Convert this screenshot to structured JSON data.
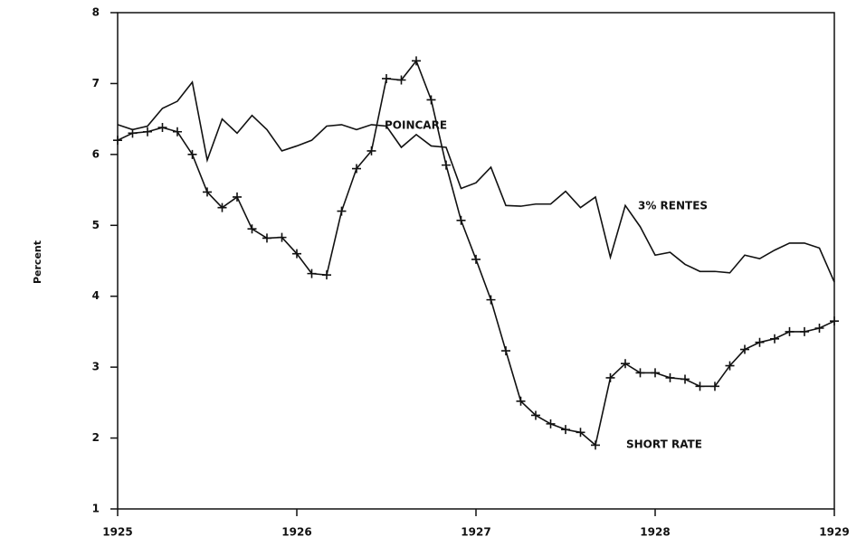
{
  "chart_data": {
    "type": "line",
    "y_label": "Percent",
    "annotations": [
      "POINCARE",
      "3% RENTES",
      "SHORT RATE"
    ],
    "x": [
      1925,
      1925.0833,
      1925.1667,
      1925.25,
      1925.3333,
      1925.4167,
      1925.5,
      1925.5833,
      1925.6667,
      1925.75,
      1925.8333,
      1925.9167,
      1926,
      1926.0833,
      1926.1667,
      1926.25,
      1926.3333,
      1926.4167,
      1926.5,
      1926.5833,
      1926.6667,
      1926.75,
      1926.8333,
      1926.9167,
      1927,
      1927.0833,
      1927.1667,
      1927.25,
      1927.3333,
      1927.4167,
      1927.5,
      1927.5833,
      1927.6667,
      1927.75,
      1927.8333,
      1927.9167,
      1928,
      1928.0833,
      1928.1667,
      1928.25,
      1928.3333,
      1928.4167,
      1928.5,
      1928.5833,
      1928.6667,
      1928.75,
      1928.8333,
      1928.9167,
      1929
    ],
    "series": [
      {
        "name": "3% RENTES",
        "color": "#111111",
        "marker": null,
        "values": [
          6.42,
          6.35,
          6.4,
          6.65,
          6.75,
          7.02,
          5.92,
          6.5,
          6.3,
          6.55,
          6.35,
          6.05,
          6.12,
          6.2,
          6.4,
          6.42,
          6.35,
          6.42,
          6.4,
          6.1,
          6.28,
          6.12,
          6.1,
          5.52,
          5.6,
          5.82,
          5.28,
          5.27,
          5.3,
          5.3,
          5.48,
          5.25,
          5.4,
          4.55,
          5.28,
          4.98,
          4.58,
          4.62,
          4.45,
          4.35,
          4.35,
          4.33,
          4.58,
          4.53,
          4.65,
          4.75,
          4.75,
          4.68,
          4.2
        ]
      },
      {
        "name": "SHORT RATE",
        "color": "#111111",
        "marker": "plus",
        "values": [
          6.2,
          6.3,
          6.32,
          6.38,
          6.32,
          6.0,
          5.47,
          5.25,
          5.4,
          4.95,
          4.82,
          4.83,
          4.6,
          4.32,
          4.3,
          5.2,
          5.8,
          6.05,
          7.07,
          7.05,
          7.32,
          6.77,
          5.85,
          5.07,
          4.52,
          3.95,
          3.23,
          2.52,
          2.32,
          2.2,
          2.12,
          2.08,
          1.9,
          2.85,
          3.05,
          2.92,
          2.92,
          2.85,
          2.83,
          2.73,
          2.73,
          3.02,
          3.25,
          3.35,
          3.4,
          3.5,
          3.5,
          3.55,
          3.65
        ]
      }
    ],
    "xlim": [
      1925,
      1929
    ],
    "xticks": [
      1925,
      1926,
      1927,
      1928,
      1929
    ],
    "ylim": [
      1,
      8
    ],
    "yticks": [
      1,
      2,
      3,
      4,
      5,
      6,
      7,
      8
    ],
    "grid": false
  }
}
